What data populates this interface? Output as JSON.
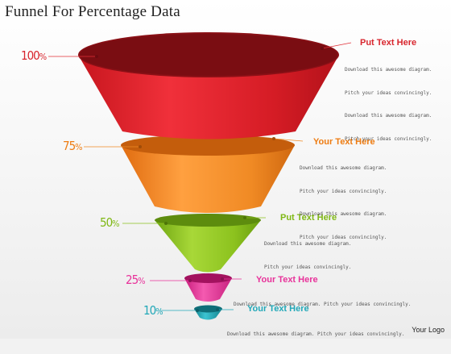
{
  "title": "Funnel For Percentage Data",
  "logo": "Your Logo",
  "stages": [
    {
      "percent": "100",
      "heading": "Put Text Here",
      "color": "#e03038",
      "lines": [
        "Download this awesome diagram.",
        "Pitch your ideas convincingly.",
        "Download this awesome diagram.",
        "Pitch your ideas convincingly."
      ]
    },
    {
      "percent": "75",
      "heading": "Your Text Here",
      "color": "#f08a24",
      "lines": [
        "Download this awesome diagram.",
        "Pitch your ideas convincingly.",
        "Download this awesome diagram.",
        "Pitch your ideas convincingly."
      ]
    },
    {
      "percent": "50",
      "heading": "Put Text Here",
      "color": "#8cc21e",
      "lines": [
        "Download this awesome diagram.",
        "Pitch your ideas convincingly."
      ]
    },
    {
      "percent": "25",
      "heading": "Your Text Here",
      "color": "#e8329a",
      "lines": [
        "Download this awesome diagram. Pitch your ideas convincingly."
      ]
    },
    {
      "percent": "10",
      "heading": "Your Text Here",
      "color": "#22a8b8",
      "lines": [
        "Download this awesome diagram. Pitch your ideas convincingly."
      ]
    }
  ]
}
